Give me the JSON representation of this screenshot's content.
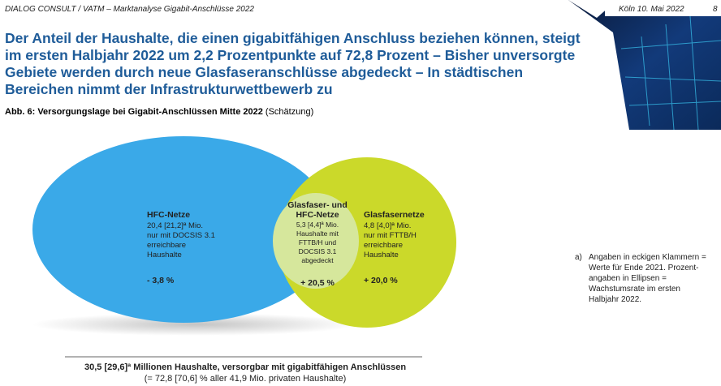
{
  "header": {
    "left": "DIALOG CONSULT / VATM – Marktanalyse Gigabit-Anschlüsse 2022",
    "date": "Köln 10. Mai 2022",
    "page": "8"
  },
  "title": [
    "Der Anteil der Haushalte, die einen gigabitfähigen Anschluss beziehen können, steigt",
    "im ersten Halbjahr 2022 um 2,2 Prozentpunkte auf 72,8 Prozent – Bisher unversorgte",
    "Gebiete werden durch neue Glasfaseranschlüsse abgedeckt – In städtischen",
    "Bereichen nimmt der Infrastrukturwettbewerb zu"
  ],
  "caption": {
    "label": "Abb. 6: Versorgungslage bei Gigabit-Anschlüssen Mitte 2022",
    "note": "(Schätzung)"
  },
  "diagram": {
    "hfc": {
      "title": "HFC-Netze",
      "lines": [
        "20,4 [21,2]ª Mio.",
        "nur mit DOCSIS 3.1",
        "erreichbare",
        "Haushalte"
      ],
      "change": "- 3,8 %"
    },
    "overlap": {
      "title": [
        "Glasfaser- und",
        "HFC-Netze"
      ],
      "lines": [
        "5,3 [4,4]ª Mio.",
        "Haushalte mit",
        "FTTB/H und",
        "DOCSIS 3.1",
        "abgedeckt"
      ],
      "change": "+ 20,5 %"
    },
    "fiber": {
      "title": "Glasfasernetze",
      "lines": [
        "4,8 [4,0]ª Mio.",
        "nur mit FTTB/H",
        "erreichbare",
        "Haushalte"
      ],
      "change": "+ 20,0 %"
    },
    "total": [
      "30,5 [29,6]ª Millionen Haushalte, versorgbar mit gigabitfähigen Anschlüssen",
      "(= 72,8 [70,6] % aller 41,9 Mio. privaten Haushalte)"
    ]
  },
  "footnote": {
    "marker": "a)",
    "lines": [
      "Angaben in eckigen Klammern =",
      "Werte für Ende 2021. Prozent-",
      "angaben in Ellipsen =",
      "Wachstumsrate im ersten",
      "Halbjahr 2022."
    ]
  }
}
